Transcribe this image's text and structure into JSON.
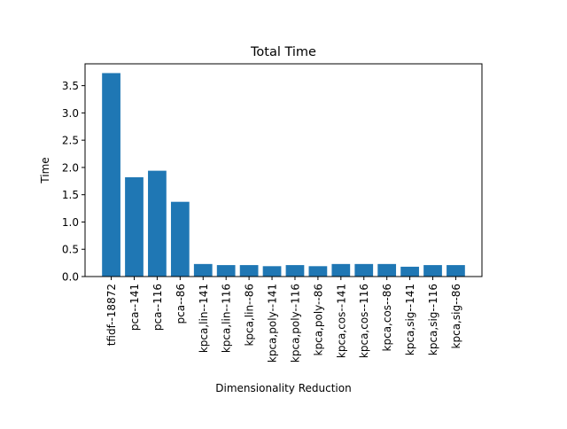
{
  "chart_data": {
    "type": "bar",
    "title": "Total Time",
    "xlabel": "Dimensionality Reduction",
    "ylabel": "Time",
    "ylim": [
      0,
      3.9
    ],
    "yticks": [
      "0.0",
      "0.5",
      "1.0",
      "1.5",
      "2.0",
      "2.5",
      "3.0",
      "3.5"
    ],
    "grid": false,
    "bar_color": "#1f77b4",
    "categories": [
      "tfidf--18872",
      "pca--141",
      "pca--116",
      "pca--86",
      "kpca,lin--141",
      "kpca,lin--116",
      "kpca,lin--86",
      "kpca,poly--141",
      "kpca,poly--116",
      "kpca,poly--86",
      "kpca,cos--141",
      "kpca,cos--116",
      "kpca,cos--86",
      "kpca,sig--141",
      "kpca,sig--116",
      "kpca,sig--86"
    ],
    "values": [
      3.73,
      1.82,
      1.94,
      1.37,
      0.23,
      0.21,
      0.21,
      0.19,
      0.21,
      0.19,
      0.23,
      0.23,
      0.23,
      0.18,
      0.21,
      0.21
    ]
  }
}
